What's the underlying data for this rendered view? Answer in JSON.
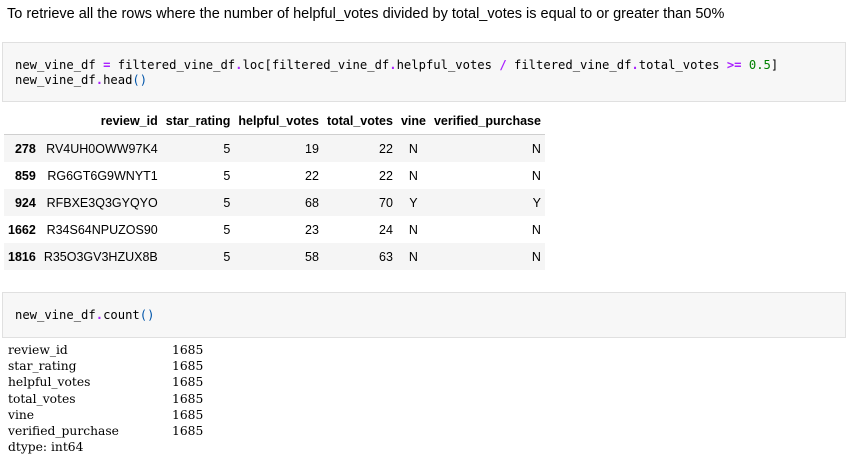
{
  "markdown": {
    "text": "To retrieve all the rows where the number of helpful_votes divided by total_votes is equal to or greater than 50%"
  },
  "cell1": {
    "line1": [
      {
        "t": "new_vine_df ",
        "c": ""
      },
      {
        "t": "=",
        "c": "op"
      },
      {
        "t": " filtered_vine_df",
        "c": ""
      },
      {
        "t": ".",
        "c": "op"
      },
      {
        "t": "loc[filtered_vine_df",
        "c": ""
      },
      {
        "t": ".",
        "c": "op"
      },
      {
        "t": "helpful_votes ",
        "c": ""
      },
      {
        "t": "/",
        "c": "op"
      },
      {
        "t": " filtered_vine_df",
        "c": ""
      },
      {
        "t": ".",
        "c": "op"
      },
      {
        "t": "total_votes ",
        "c": ""
      },
      {
        "t": ">=",
        "c": "op"
      },
      {
        "t": " ",
        "c": ""
      },
      {
        "t": "0.5",
        "c": "num"
      },
      {
        "t": "]",
        "c": ""
      }
    ],
    "line2": [
      {
        "t": "new_vine_df",
        "c": ""
      },
      {
        "t": ".",
        "c": "op"
      },
      {
        "t": "head",
        "c": ""
      },
      {
        "t": "()",
        "c": "brk"
      }
    ]
  },
  "dataframe": {
    "columns": [
      "",
      "review_id",
      "star_rating",
      "helpful_votes",
      "total_votes",
      "vine",
      "verified_purchase"
    ],
    "rows": [
      {
        "index": "278",
        "review_id": "RV4UH0OWW97K4",
        "star_rating": "5",
        "helpful_votes": "19",
        "total_votes": "22",
        "vine": "N",
        "verified_purchase": "N"
      },
      {
        "index": "859",
        "review_id": "RG6GT6G9WNYT1",
        "star_rating": "5",
        "helpful_votes": "22",
        "total_votes": "22",
        "vine": "N",
        "verified_purchase": "N"
      },
      {
        "index": "924",
        "review_id": "RFBXE3Q3GYQYO",
        "star_rating": "5",
        "helpful_votes": "68",
        "total_votes": "70",
        "vine": "Y",
        "verified_purchase": "Y"
      },
      {
        "index": "1662",
        "review_id": "R34S64NPUZOS90",
        "star_rating": "5",
        "helpful_votes": "23",
        "total_votes": "24",
        "vine": "N",
        "verified_purchase": "N"
      },
      {
        "index": "1816",
        "review_id": "R35O3GV3HZUX8B",
        "star_rating": "5",
        "helpful_votes": "58",
        "total_votes": "63",
        "vine": "N",
        "verified_purchase": "N"
      }
    ]
  },
  "cell2": {
    "line1": [
      {
        "t": "new_vine_df",
        "c": ""
      },
      {
        "t": ".",
        "c": "op"
      },
      {
        "t": "count",
        "c": ""
      },
      {
        "t": "()",
        "c": "brk"
      }
    ]
  },
  "count_output": {
    "rows": [
      {
        "name": "review_id",
        "value": "1685"
      },
      {
        "name": "star_rating",
        "value": "1685"
      },
      {
        "name": "helpful_votes",
        "value": "1685"
      },
      {
        "name": "total_votes",
        "value": "1685"
      },
      {
        "name": "vine",
        "value": "1685"
      },
      {
        "name": "verified_purchase",
        "value": "1685"
      }
    ],
    "dtype": "dtype: int64"
  },
  "colors": {
    "operator": "#aa22ff",
    "number": "#008000",
    "bracket": "#0055aa",
    "cell_bg": "#f7f7f7",
    "row_stripe": "#f5f5f5"
  }
}
